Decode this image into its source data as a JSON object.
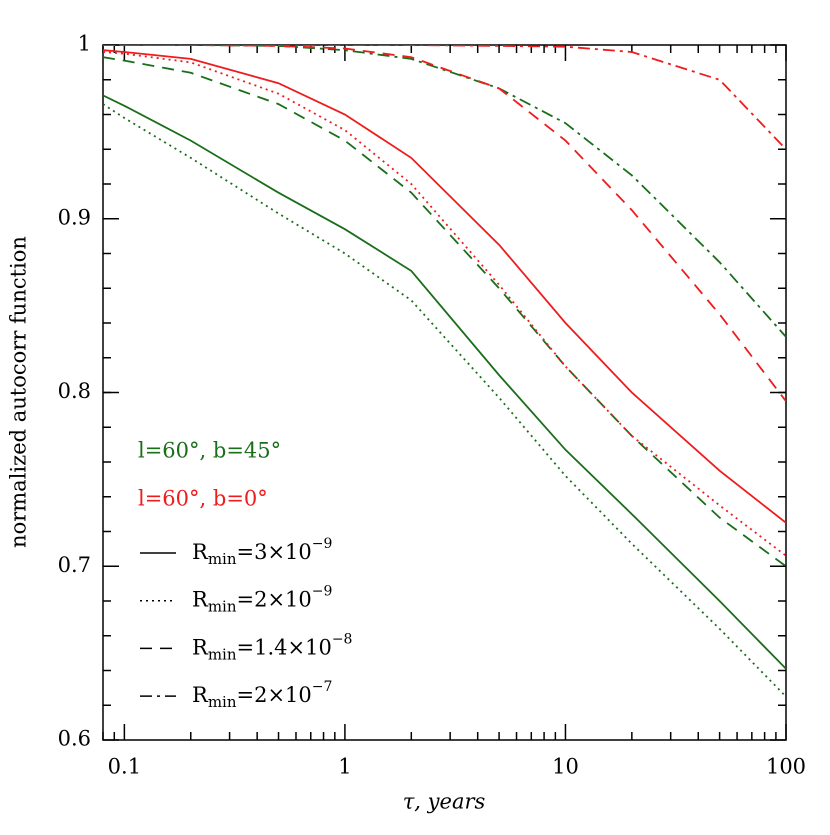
{
  "chart_data": {
    "type": "line",
    "x_label": "τ, years",
    "y_label": "normalized autocorr function",
    "xlog": true,
    "xlim": [
      0.08,
      100
    ],
    "xticks": [
      0.1,
      1,
      10,
      100
    ],
    "ylim": [
      0.6,
      1
    ],
    "yticks": [
      0.6,
      0.7,
      0.8,
      0.9,
      1
    ],
    "y_minor_step": 0.02,
    "x": [
      0.08,
      0.1,
      0.2,
      0.5,
      1,
      2,
      5,
      10,
      20,
      50,
      100
    ],
    "groups": [
      {
        "name": "l=60°, b=45°",
        "color": "#1a6e1a"
      },
      {
        "name": "l=60°, b=0°",
        "color": "#ee1c1c"
      }
    ],
    "styles": [
      {
        "dash": "solid",
        "name_parts": [
          "R",
          "min",
          "=3×10",
          "−9"
        ]
      },
      {
        "dash": "dotted",
        "name_parts": [
          "R",
          "min",
          "=2×10",
          "−9"
        ]
      },
      {
        "dash": "dashed",
        "name_parts": [
          "R",
          "min",
          "=1.4×10",
          "−8"
        ]
      },
      {
        "dash": "dashdot",
        "name_parts": [
          "R",
          "min",
          "=2×10",
          "−7"
        ]
      }
    ],
    "series": [
      {
        "group": 0,
        "style": 0,
        "values": [
          0.971,
          0.965,
          0.945,
          0.915,
          0.894,
          0.87,
          0.81,
          0.767,
          0.73,
          0.68,
          0.641
        ]
      },
      {
        "group": 0,
        "style": 1,
        "values": [
          0.966,
          0.958,
          0.935,
          0.903,
          0.88,
          0.853,
          0.797,
          0.752,
          0.713,
          0.664,
          0.625
        ]
      },
      {
        "group": 0,
        "style": 2,
        "values": [
          0.993,
          0.991,
          0.984,
          0.966,
          0.945,
          0.915,
          0.86,
          0.815,
          0.775,
          0.728,
          0.7
        ]
      },
      {
        "group": 0,
        "style": 3,
        "values": [
          1.0,
          1.0,
          1.0,
          0.9995,
          0.997,
          0.992,
          0.975,
          0.955,
          0.925,
          0.875,
          0.832
        ]
      },
      {
        "group": 1,
        "style": 0,
        "values": [
          0.997,
          0.996,
          0.992,
          0.978,
          0.96,
          0.935,
          0.885,
          0.84,
          0.8,
          0.755,
          0.725
        ]
      },
      {
        "group": 1,
        "style": 1,
        "values": [
          0.996,
          0.995,
          0.99,
          0.972,
          0.951,
          0.92,
          0.862,
          0.815,
          0.775,
          0.735,
          0.706
        ]
      },
      {
        "group": 1,
        "style": 2,
        "values": [
          1.0,
          1.0,
          1.0,
          0.9995,
          0.998,
          0.993,
          0.975,
          0.945,
          0.905,
          0.845,
          0.795
        ]
      },
      {
        "group": 1,
        "style": 3,
        "values": [
          1.0,
          1.0,
          1.0,
          1.0,
          1.0,
          1.0,
          0.9995,
          0.999,
          0.996,
          0.98,
          0.94
        ]
      }
    ]
  }
}
